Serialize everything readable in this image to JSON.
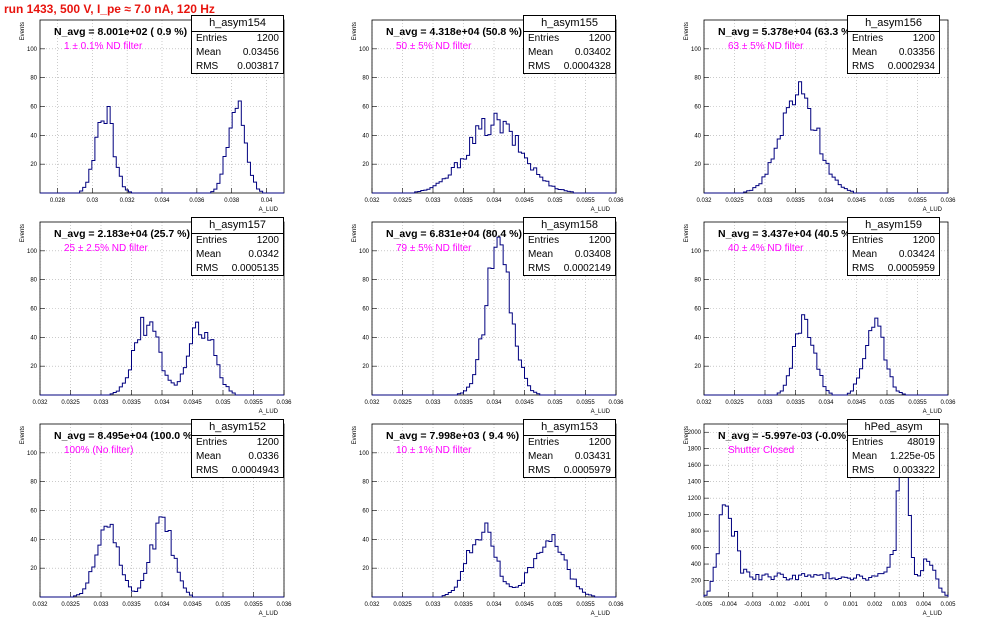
{
  "page": {
    "run_title": "run 1433,   500 V, I_pe ≈ 7.0 nA, 120 Hz"
  },
  "colors": {
    "histogram": "#00007f",
    "run_title": "#e8140e",
    "filter_text": "#ff00ff",
    "grid": "#aaaaaa"
  },
  "chart_data": [
    {
      "type": "bar",
      "name": "h_asym154",
      "title": "N_avg = 8.001e+02 ( 0.9 %)",
      "filter": "1 ± 0.1% ND filter",
      "stats": [
        [
          "Entries",
          "1200"
        ],
        [
          "Mean",
          "0.03456"
        ],
        [
          "RMS",
          "0.003817"
        ]
      ],
      "xlabel": "A_LUD",
      "ylabel": "Events",
      "xlim": [
        0.027,
        0.041
      ],
      "ylim": [
        0,
        120
      ],
      "xticks": [
        "0.028",
        "0.03",
        "0.032",
        "0.034",
        "0.036",
        "0.038",
        "0.04"
      ],
      "xtick_vals": [
        0.028,
        0.03,
        0.032,
        0.034,
        0.036,
        0.038,
        0.04
      ],
      "yticks": [
        "20",
        "40",
        "60",
        "80",
        "100"
      ],
      "ytick_vals": [
        20,
        40,
        60,
        80,
        100
      ],
      "peaks": [
        [
          0.0307,
          0.0005,
          58
        ],
        [
          0.0383,
          0.0005,
          60
        ]
      ]
    },
    {
      "type": "bar",
      "name": "h_asym155",
      "title": "N_avg = 4.318e+04 (50.8 %)",
      "filter": "50 ± 5% ND filter",
      "stats": [
        [
          "Entries",
          "1200"
        ],
        [
          "Mean",
          "0.03402"
        ],
        [
          "RMS",
          "0.0004328"
        ]
      ],
      "xlabel": "A_LUD",
      "ylabel": "Events",
      "xlim": [
        0.032,
        0.036
      ],
      "ylim": [
        0,
        120
      ],
      "xticks": [
        "0.032",
        "0.0325",
        "0.033",
        "0.0335",
        "0.034",
        "0.0345",
        "0.035",
        "0.0355",
        "0.036"
      ],
      "xtick_vals": [
        0.032,
        0.0325,
        0.033,
        0.0335,
        0.034,
        0.0345,
        0.035,
        0.0355,
        0.036
      ],
      "yticks": [
        "20",
        "40",
        "60",
        "80",
        "100"
      ],
      "ytick_vals": [
        20,
        40,
        60,
        80,
        100
      ],
      "peaks": [
        [
          0.034,
          0.00045,
          48
        ]
      ]
    },
    {
      "type": "bar",
      "name": "h_asym156",
      "title": "N_avg = 5.378e+04 (63.3 %)",
      "filter": "63 ± 5% ND filter",
      "stats": [
        [
          "Entries",
          "1200"
        ],
        [
          "Mean",
          "0.03356"
        ],
        [
          "RMS",
          "0.0002934"
        ]
      ],
      "xlabel": "A_LUD",
      "ylabel": "Events",
      "xlim": [
        0.032,
        0.036
      ],
      "ylim": [
        0,
        120
      ],
      "xticks": [
        "0.032",
        "0.0325",
        "0.033",
        "0.0335",
        "0.034",
        "0.0345",
        "0.035",
        "0.0355",
        "0.036"
      ],
      "xtick_vals": [
        0.032,
        0.0325,
        0.033,
        0.0335,
        0.034,
        0.0345,
        0.035,
        0.0355,
        0.036
      ],
      "yticks": [
        "20",
        "40",
        "60",
        "80",
        "100"
      ],
      "ytick_vals": [
        20,
        40,
        60,
        80,
        100
      ],
      "peaks": [
        [
          0.03356,
          0.0003,
          68
        ]
      ]
    },
    {
      "type": "bar",
      "name": "h_asym157",
      "title": "N_avg = 2.183e+04 (25.7 %)",
      "filter": "25 ± 2.5% ND filter",
      "stats": [
        [
          "Entries",
          "1200"
        ],
        [
          "Mean",
          "0.0342"
        ],
        [
          "RMS",
          "0.0005135"
        ]
      ],
      "xlabel": "A_LUD",
      "ylabel": "Events",
      "xlim": [
        0.032,
        0.036
      ],
      "ylim": [
        0,
        120
      ],
      "xticks": [
        "0.032",
        "0.0325",
        "0.033",
        "0.0335",
        "0.034",
        "0.0345",
        "0.035",
        "0.0355",
        "0.036"
      ],
      "xtick_vals": [
        0.032,
        0.0325,
        0.033,
        0.0335,
        0.034,
        0.0345,
        0.035,
        0.0355,
        0.036
      ],
      "yticks": [
        "20",
        "40",
        "60",
        "80",
        "100"
      ],
      "ytick_vals": [
        20,
        40,
        60,
        80,
        100
      ],
      "peaks": [
        [
          0.03375,
          0.0002,
          50
        ],
        [
          0.03465,
          0.0002,
          48
        ]
      ]
    },
    {
      "type": "bar",
      "name": "h_asym158",
      "title": "N_avg = 6.831e+04 (80.4 %)",
      "filter": "79 ± 5% ND filter",
      "stats": [
        [
          "Entries",
          "1200"
        ],
        [
          "Mean",
          "0.03408"
        ],
        [
          "RMS",
          "0.0002149"
        ]
      ],
      "xlabel": "A_LUD",
      "ylabel": "Events",
      "xlim": [
        0.032,
        0.036
      ],
      "ylim": [
        0,
        120
      ],
      "xticks": [
        "0.032",
        "0.0325",
        "0.033",
        "0.0335",
        "0.034",
        "0.0345",
        "0.035",
        "0.0355",
        "0.036"
      ],
      "xtick_vals": [
        0.032,
        0.0325,
        0.033,
        0.0335,
        0.034,
        0.0345,
        0.035,
        0.0355,
        0.036
      ],
      "yticks": [
        "20",
        "40",
        "60",
        "80",
        "100"
      ],
      "ytick_vals": [
        20,
        40,
        60,
        80,
        100
      ],
      "peaks": [
        [
          0.03408,
          0.00021,
          100
        ]
      ]
    },
    {
      "type": "bar",
      "name": "h_asym159",
      "title": "N_avg = 3.437e+04 (40.5 %)",
      "filter": "40 ± 4% ND filter",
      "stats": [
        [
          "Entries",
          "1200"
        ],
        [
          "Mean",
          "0.03424"
        ],
        [
          "RMS",
          "0.0005959"
        ]
      ],
      "xlabel": "A_LUD",
      "ylabel": "Events",
      "xlim": [
        0.032,
        0.036
      ],
      "ylim": [
        0,
        120
      ],
      "xticks": [
        "0.032",
        "0.0325",
        "0.033",
        "0.0335",
        "0.034",
        "0.0345",
        "0.035",
        "0.0355",
        "0.036"
      ],
      "xtick_vals": [
        0.032,
        0.0325,
        0.033,
        0.0335,
        0.034,
        0.0345,
        0.035,
        0.0355,
        0.036
      ],
      "yticks": [
        "20",
        "40",
        "60",
        "80",
        "100"
      ],
      "ytick_vals": [
        20,
        40,
        60,
        80,
        100
      ],
      "peaks": [
        [
          0.03365,
          0.00016,
          52
        ],
        [
          0.0348,
          0.00016,
          52
        ]
      ]
    },
    {
      "type": "bar",
      "name": "h_asym152",
      "title": "N_avg = 8.495e+04 (100.0 %)",
      "filter": "100% (No filter)",
      "stats": [
        [
          "Entries",
          "1200"
        ],
        [
          "Mean",
          "0.0336"
        ],
        [
          "RMS",
          "0.0004943"
        ]
      ],
      "xlabel": "A_LUD",
      "ylabel": "Events",
      "xlim": [
        0.032,
        0.036
      ],
      "ylim": [
        0,
        120
      ],
      "xticks": [
        "0.032",
        "0.0325",
        "0.033",
        "0.0335",
        "0.034",
        "0.0345",
        "0.035",
        "0.0355",
        "0.036"
      ],
      "xtick_vals": [
        0.032,
        0.0325,
        0.033,
        0.0335,
        0.034,
        0.0345,
        0.035,
        0.0355,
        0.036
      ],
      "yticks": [
        "20",
        "40",
        "60",
        "80",
        "100"
      ],
      "ytick_vals": [
        20,
        40,
        60,
        80,
        100
      ],
      "peaks": [
        [
          0.0331,
          0.00018,
          48
        ],
        [
          0.034,
          0.00018,
          50
        ]
      ]
    },
    {
      "type": "bar",
      "name": "h_asym153",
      "title": "N_avg = 7.998e+03 ( 9.4 %)",
      "filter": "10 ± 1% ND filter",
      "stats": [
        [
          "Entries",
          "1200"
        ],
        [
          "Mean",
          "0.03431"
        ],
        [
          "RMS",
          "0.0005979"
        ]
      ],
      "xlabel": "A_LUD",
      "ylabel": "Events",
      "xlim": [
        0.032,
        0.036
      ],
      "ylim": [
        0,
        120
      ],
      "xticks": [
        "0.032",
        "0.0325",
        "0.033",
        "0.0335",
        "0.034",
        "0.0345",
        "0.035",
        "0.0355",
        "0.036"
      ],
      "xtick_vals": [
        0.032,
        0.0325,
        0.033,
        0.0335,
        0.034,
        0.0345,
        0.035,
        0.0355,
        0.036
      ],
      "yticks": [
        "20",
        "40",
        "60",
        "80",
        "100"
      ],
      "ytick_vals": [
        20,
        40,
        60,
        80,
        100
      ],
      "peaks": [
        [
          0.0338,
          0.00022,
          48
        ],
        [
          0.0349,
          0.00026,
          40
        ]
      ]
    },
    {
      "type": "bar",
      "name": "hPed_asym",
      "title": "N_avg = -5.997e-03 (-0.0%)",
      "filter": "Shutter Closed",
      "stats": [
        [
          "Entries",
          "48019"
        ],
        [
          "Mean",
          "1.225e-05"
        ],
        [
          "RMS",
          "0.003322"
        ]
      ],
      "xlabel": "A_LUD",
      "ylabel": "Events",
      "xlim": [
        -0.005,
        0.005
      ],
      "ylim": [
        0,
        2100
      ],
      "xticks": [
        "-0.005",
        "-0.004",
        "-0.003",
        "-0.002",
        "-0.001",
        "0",
        "0.001",
        "0.002",
        "0.003",
        "0.004",
        "0.005"
      ],
      "xtick_vals": [
        -0.005,
        -0.004,
        -0.003,
        -0.002,
        -0.001,
        0,
        0.001,
        0.002,
        0.003,
        0.004,
        0.005
      ],
      "yticks": [
        "200",
        "400",
        "600",
        "800",
        "1000",
        "1200",
        "1400",
        "1600",
        "1800",
        "2000"
      ],
      "ytick_vals": [
        200,
        400,
        600,
        800,
        1000,
        1200,
        1400,
        1600,
        1800,
        2000
      ],
      "peaks": [
        [
          -0.0041,
          0.0003,
          1150
        ],
        [
          0.00315,
          0.00025,
          1700
        ],
        [
          0.0042,
          0.0003,
          450
        ]
      ],
      "baseline": 250
    }
  ]
}
